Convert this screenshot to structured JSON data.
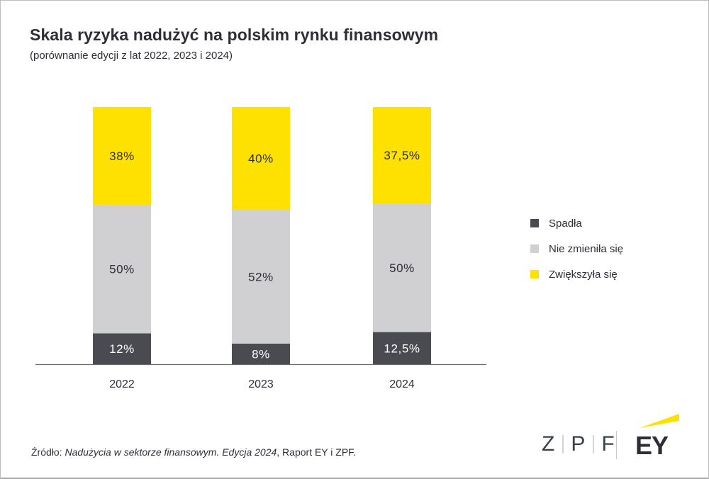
{
  "title": "Skala ryzyka nadużyć na polskim rynku finansowym",
  "subtitle": "(porównanie edycji z lat 2022, 2023 i 2024)",
  "source": {
    "prefix": "Źródło: ",
    "italic": "Nadużycia w sektorze finansowym. Edycja 2024",
    "suffix": ", Raport EY i ZPF."
  },
  "logos": {
    "zpf_letters": [
      "Z",
      "P",
      "F"
    ],
    "ey": "EY"
  },
  "chart_data": {
    "type": "bar",
    "stacked": true,
    "categories": [
      "2022",
      "2023",
      "2024"
    ],
    "series": [
      {
        "name": "Spadła",
        "color": "#4a4b50",
        "values": [
          12,
          8,
          12.5
        ],
        "labels": [
          "12%",
          "8%",
          "12,5%"
        ],
        "label_color": "#ffffff"
      },
      {
        "name": "Nie zmieniła się",
        "color": "#d0d0d2",
        "values": [
          50,
          52,
          50
        ],
        "labels": [
          "50%",
          "52%",
          "50%"
        ],
        "label_color": "#2e2e38"
      },
      {
        "name": "Zwiększyła się",
        "color": "#ffe100",
        "values": [
          38,
          40,
          37.5
        ],
        "labels": [
          "38%",
          "40%",
          "37,5%"
        ],
        "label_color": "#2e2e38"
      }
    ],
    "ylim": [
      0,
      100
    ],
    "grid": false,
    "legend_position": "right"
  }
}
